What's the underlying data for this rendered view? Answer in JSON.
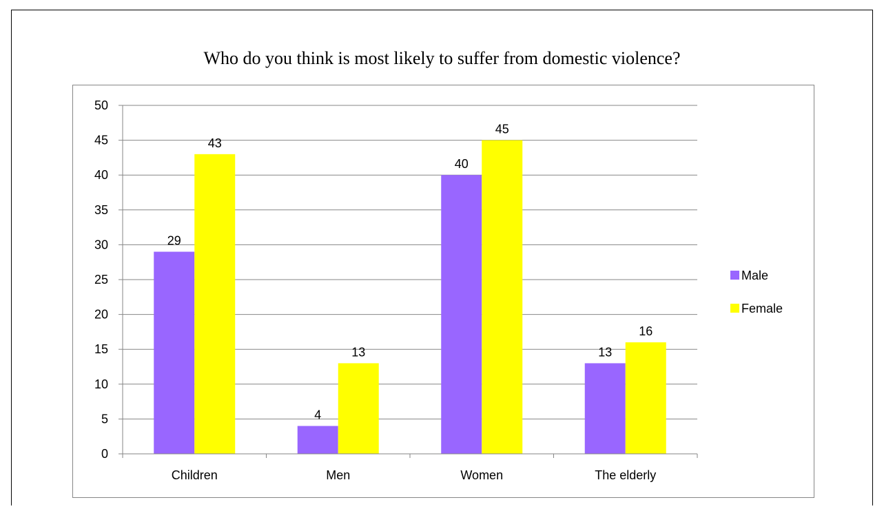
{
  "chart_data": {
    "type": "bar",
    "title": "Who do you think is most likely to suffer from domestic violence?",
    "categories": [
      "Children",
      "Men",
      "Women",
      "The elderly"
    ],
    "series": [
      {
        "name": "Male",
        "values": [
          29,
          4,
          40,
          13
        ],
        "color": "#9966ff"
      },
      {
        "name": "Female",
        "values": [
          43,
          13,
          45,
          16
        ],
        "color": "#ffff00"
      }
    ],
    "ylim": [
      0,
      50
    ],
    "yticks": [
      "0",
      "5",
      "10",
      "15",
      "20",
      "25",
      "30",
      "35",
      "40",
      "45",
      "50"
    ],
    "grid": true,
    "legend_position": "right",
    "data_labels": true
  }
}
